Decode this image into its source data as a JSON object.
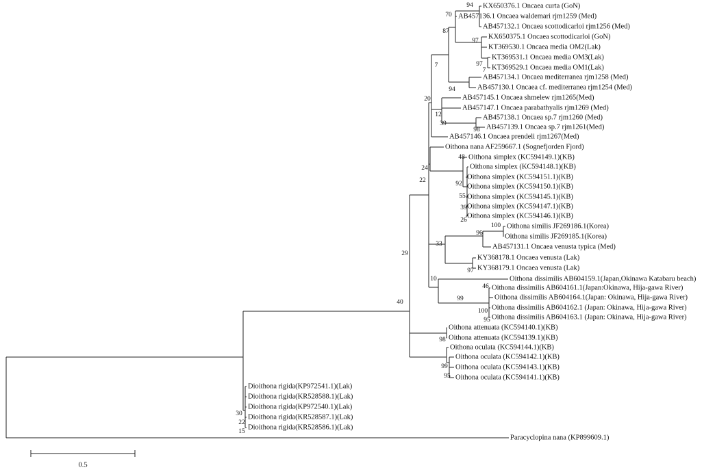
{
  "tree": {
    "leaves": [
      "KX650376.1 Oncaea curta (GoN)",
      "AB457136.1 Oncaea waldemari rjm1259 (Med)",
      "AB457132.1 Oncaea scottodicarloi rjm1256 (Med)",
      "KX650375.1 Oncaea scottodicarloi (GoN)",
      "KT369530.1 Oncaea media OM2(Lak)",
      "KT369531.1 Oncaea media OM3(Lak)",
      "KT369529.1 Oncaea media OM1(Lak)",
      "AB457134.1 Oncaea mediterranea rjm1258 (Med)",
      "AB457130.1 Oncaea cf. mediterranea rjm1254 (Med)",
      "AB457145.1 Oncaea shmelew rjm1265(Med)",
      "AB457147.1 Oncaea parabathyalis rjm1269 (Med)",
      "AB457138.1 Oncaea sp.7 rjm1260 (Med)",
      "AB457139.1 Oncaea sp.7 rjm1261(Med)",
      "AB457146.1 Oncaea prendeli rjm1267(Med)",
      "Oithona nana AF259667.1 (Sognefjorden Fjord)",
      "Oithona simplex (KC594149.1)(KB)",
      "Oithona simplex (KC594148.1)(KB)",
      "Oithona simplex (KC594151.1)(KB)",
      "Oithona simplex (KC594150.1)(KB)",
      "Oithona simplex (KC594145.1)(KB)",
      "Oithona simplex (KC594147.1)(KB)",
      "Oithona simplex (KC594146.1)(KB)",
      "Oithona similis JF269186.1(Korea)",
      "Oithona similis JF269185.1(Korea)",
      "AB457131.1 Oncaea venusta typica (Med)",
      "KY368178.1 Oncaea venusta (Lak)",
      "KY368179.1 Oncaea venusta (Lak)",
      "Oithona dissimilis AB604159.1(Japan,Okinawa Katabaru beach)",
      "Oithona dissimilis AB604161.1(Japan:Okinawa, Hija-gawa River)",
      "Oithona dissimilis AB604164.1(Japan: Okinawa, Hija-gawa River)",
      "Oithona dissimilis AB604162.1 (Japan: Okinawa, Hija-gawa River)",
      "Oithona dissimilis AB604163.1 (Japan: Okinawa, Hija-gawa River)",
      "Oithona attenuata (KC594140.1)(KB)",
      "Oithona attenuata (KC594139.1)(KB)",
      "Oithona oculata (KC594144.1)(KB)",
      "Oithona oculata (KC594142.1)(KB)",
      "Oithona oculata (KC594143.1)(KB)",
      "Oithona oculata (KC594141.1)(KB)",
      "Dioithona rigida(KP972541.1)(Lak)",
      "Dioithona rigida(KR528588.1)(Lak)",
      "Dioithona rigida(KP972540.1)(Lak)",
      "Dioithona rigida(KR528587.1)(Lak)",
      "Dioithona rigida(KR528586.1)(Lak)",
      "Paracyclopina nana (KP899609.1)"
    ],
    "supports": [
      94,
      70,
      87,
      97,
      97,
      7,
      7,
      94,
      20,
      12,
      39,
      98,
      24,
      22,
      48,
      92,
      55,
      39,
      26,
      100,
      96,
      33,
      97,
      29,
      10,
      46,
      99,
      100,
      95,
      40,
      98,
      99,
      95,
      30,
      22,
      15
    ]
  },
  "scale_bar": {
    "label": "0.5"
  }
}
